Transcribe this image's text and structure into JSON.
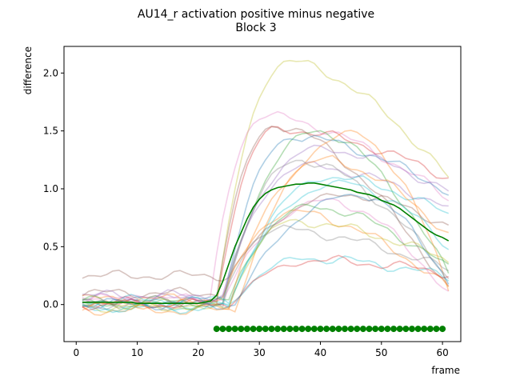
{
  "chart_data": {
    "type": "line",
    "title": "AU14_r activation positive minus negative",
    "subtitle": "Block 3",
    "xlabel": "frame",
    "ylabel": "difference",
    "xlim": [
      -2,
      63
    ],
    "ylim": [
      -0.32,
      2.23
    ],
    "xticks": [
      0,
      10,
      20,
      30,
      40,
      50,
      60
    ],
    "yticks": [
      0.0,
      0.5,
      1.0,
      1.5,
      2.0
    ],
    "grid": false,
    "x_start": 1,
    "mean_color": "#008000",
    "mean_values": [
      0.02,
      0.02,
      0.02,
      0.02,
      0.02,
      0.02,
      0.02,
      0.02,
      0.02,
      0.01,
      0.01,
      0.01,
      0.01,
      0.01,
      0.01,
      0.01,
      0.01,
      0.01,
      0.01,
      0.01,
      0.02,
      0.03,
      0.08,
      0.2,
      0.35,
      0.5,
      0.62,
      0.74,
      0.84,
      0.91,
      0.96,
      0.99,
      1.01,
      1.02,
      1.03,
      1.04,
      1.04,
      1.05,
      1.05,
      1.04,
      1.03,
      1.02,
      1.01,
      1.0,
      0.99,
      0.97,
      0.96,
      0.95,
      0.93,
      0.9,
      0.88,
      0.86,
      0.83,
      0.79,
      0.75,
      0.71,
      0.67,
      0.63,
      0.6,
      0.58,
      0.55
    ],
    "significance_marker_y": -0.21,
    "significance_frames": [
      23,
      24,
      25,
      26,
      27,
      28,
      29,
      30,
      31,
      32,
      33,
      34,
      35,
      36,
      37,
      38,
      39,
      40,
      41,
      42,
      43,
      44,
      45,
      46,
      47,
      48,
      49,
      50,
      51,
      52,
      53,
      54,
      55,
      56,
      57,
      58,
      59,
      60
    ],
    "series": [
      {
        "color": "#bcbd22",
        "start": 0.0,
        "peak": 2.1,
        "peak_at": 35,
        "end": 1.15,
        "onset": 23
      },
      {
        "color": "#e377c2",
        "start": 0.05,
        "peak": 1.63,
        "peak_at": 31,
        "end": 0.95,
        "onset": 22
      },
      {
        "color": "#d62728",
        "start": 0.02,
        "peak": 1.52,
        "peak_at": 33,
        "end": 1.12,
        "onset": 23
      },
      {
        "color": "#8c564b",
        "start": 0.1,
        "peak": 1.55,
        "peak_at": 33,
        "end": 0.2,
        "onset": 23
      },
      {
        "color": "#2ca02c",
        "start": 0.0,
        "peak": 1.5,
        "peak_at": 40,
        "end": 0.35,
        "onset": 24
      },
      {
        "color": "#ff7f0e",
        "start": -0.05,
        "peak": 1.48,
        "peak_at": 46,
        "end": 0.3,
        "onset": 26
      },
      {
        "color": "#1f77b4",
        "start": 0.02,
        "peak": 1.45,
        "peak_at": 36,
        "end": 1.0,
        "onset": 24
      },
      {
        "color": "#9467bd",
        "start": 0.05,
        "peak": 1.2,
        "peak_at": 38,
        "end": 0.85,
        "onset": 24
      },
      {
        "color": "#17becf",
        "start": -0.02,
        "peak": 1.1,
        "peak_at": 42,
        "end": 0.8,
        "onset": 25
      },
      {
        "color": "#7f7f7f",
        "start": 0.0,
        "peak": 1.25,
        "peak_at": 37,
        "end": 0.3,
        "onset": 24
      },
      {
        "color": "#8c564b",
        "start": 0.25,
        "peak": 0.95,
        "peak_at": 45,
        "end": 0.7,
        "onset": 25
      },
      {
        "color": "#ff7f0e",
        "start": 0.05,
        "peak": 0.8,
        "peak_at": 36,
        "end": 0.18,
        "onset": 24
      },
      {
        "color": "#17becf",
        "start": -0.03,
        "peak": 0.4,
        "peak_at": 38,
        "end": 0.25,
        "onset": 25
      },
      {
        "color": "#d62728",
        "start": 0.0,
        "peak": 0.38,
        "peak_at": 40,
        "end": 0.28,
        "onset": 25
      },
      {
        "color": "#e377c2",
        "start": 0.05,
        "peak": 0.9,
        "peak_at": 42,
        "end": 0.15,
        "onset": 24
      },
      {
        "color": "#2ca02c",
        "start": 0.03,
        "peak": 0.85,
        "peak_at": 39,
        "end": 0.35,
        "onset": 25
      },
      {
        "color": "#bcbd22",
        "start": -0.02,
        "peak": 0.72,
        "peak_at": 36,
        "end": 0.4,
        "onset": 25
      },
      {
        "color": "#1f77b4",
        "start": 0.0,
        "peak": 0.95,
        "peak_at": 47,
        "end": 0.28,
        "onset": 26
      },
      {
        "color": "#9467bd",
        "start": 0.08,
        "peak": 1.35,
        "peak_at": 40,
        "end": 1.0,
        "onset": 24
      },
      {
        "color": "#7f7f7f",
        "start": 0.02,
        "peak": 0.65,
        "peak_at": 33,
        "end": 0.32,
        "onset": 24
      },
      {
        "color": "#17becf",
        "start": 0.04,
        "peak": 1.05,
        "peak_at": 44,
        "end": 0.55,
        "onset": 25
      },
      {
        "color": "#ff7f0e",
        "start": 0.0,
        "peak": 1.25,
        "peak_at": 41,
        "end": 0.65,
        "onset": 25
      }
    ]
  }
}
